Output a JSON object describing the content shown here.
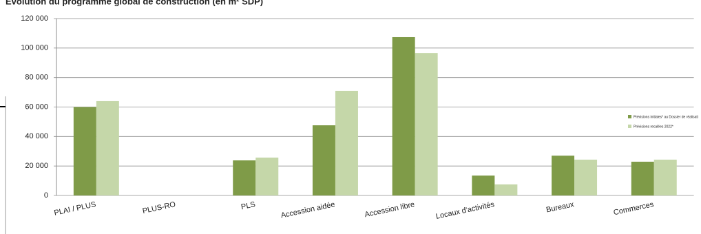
{
  "chart_data": {
    "type": "bar",
    "title": "Evolution du programme global de construction (en m² SDP)",
    "categories": [
      "PLAI / PLUS",
      "PLUS-RO",
      "PLS",
      "Accession aidée",
      "Accession libre",
      "Locaux d'activités",
      "Bureaux",
      "Commerces"
    ],
    "series": [
      {
        "name": "Prévisions initiales* au Dossier de réalisati",
        "color": "#7f9b48",
        "values": [
          60000,
          0,
          23800,
          47600,
          107400,
          13500,
          27000,
          22900
        ]
      },
      {
        "name": "Prévisions recalées 2022*",
        "color": "#c5d7a9",
        "values": [
          64000,
          0,
          25700,
          71000,
          96600,
          7500,
          24300,
          24300
        ]
      }
    ],
    "ylim": [
      0,
      120000
    ],
    "yticks": [
      {
        "value": 0,
        "label": "0"
      },
      {
        "value": 20000,
        "label": "20 000"
      },
      {
        "value": 40000,
        "label": "40 000"
      },
      {
        "value": 60000,
        "label": "60 000"
      },
      {
        "value": 80000,
        "label": "80 000"
      },
      {
        "value": 100000,
        "label": "100 000"
      },
      {
        "value": 120000,
        "label": "120 000"
      }
    ],
    "grid": true,
    "legend": "right"
  }
}
